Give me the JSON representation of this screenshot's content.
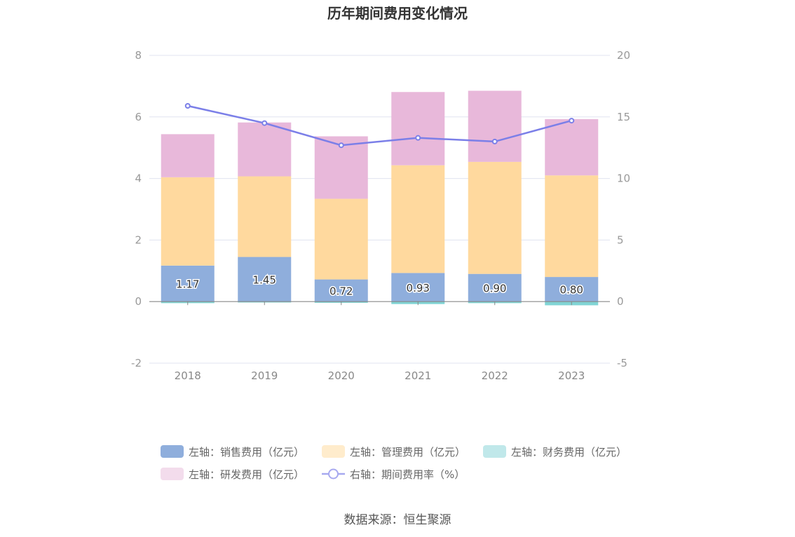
{
  "chart_data": {
    "type": "bar",
    "title": "历年期间费用变化情况",
    "categories": [
      "2018",
      "2019",
      "2020",
      "2021",
      "2022",
      "2023"
    ],
    "series": [
      {
        "name": "左轴：销售费用（亿元）",
        "axis": "left",
        "kind": "bar",
        "color": "#8faedc",
        "values": [
          1.17,
          1.45,
          0.72,
          0.93,
          0.9,
          0.8
        ],
        "labels": [
          "1.17",
          "1.45",
          "0.72",
          "0.93",
          "0.90",
          "0.80"
        ]
      },
      {
        "name": "左轴：管理费用（亿元）",
        "axis": "left",
        "kind": "bar",
        "color": "#ffd99e",
        "values": [
          2.87,
          2.62,
          2.62,
          3.5,
          3.64,
          3.3
        ]
      },
      {
        "name": "左轴：财务费用（亿元）",
        "axis": "left",
        "kind": "bar",
        "color": "#80d4d4",
        "values": [
          -0.05,
          -0.03,
          -0.04,
          -0.08,
          -0.05,
          -0.12
        ]
      },
      {
        "name": "左轴：研发费用（亿元）",
        "axis": "left",
        "kind": "bar",
        "color": "#e8b8da",
        "values": [
          1.4,
          1.75,
          2.03,
          2.38,
          2.31,
          1.83
        ]
      },
      {
        "name": "右轴：期间费用率（%）",
        "axis": "right",
        "kind": "line",
        "color": "#7b7fe8",
        "values": [
          15.9,
          14.5,
          12.7,
          13.3,
          13.0,
          14.7
        ]
      }
    ],
    "left_axis": {
      "min": -2,
      "max": 8,
      "ticks": [
        "-2",
        "0",
        "2",
        "4",
        "6",
        "8"
      ]
    },
    "right_axis": {
      "min": -5,
      "max": 20,
      "ticks": [
        "-5",
        "0",
        "5",
        "10",
        "15",
        "20"
      ]
    },
    "legend_position": "bottom",
    "grid": true
  },
  "legend_colors": {
    "sales": "#8faedc",
    "admin": "#ffeccc",
    "finance": "#c0e8ea",
    "rnd": "#f3dcec",
    "rate": "#a7a9f0"
  },
  "source": "数据来源：恒生聚源"
}
